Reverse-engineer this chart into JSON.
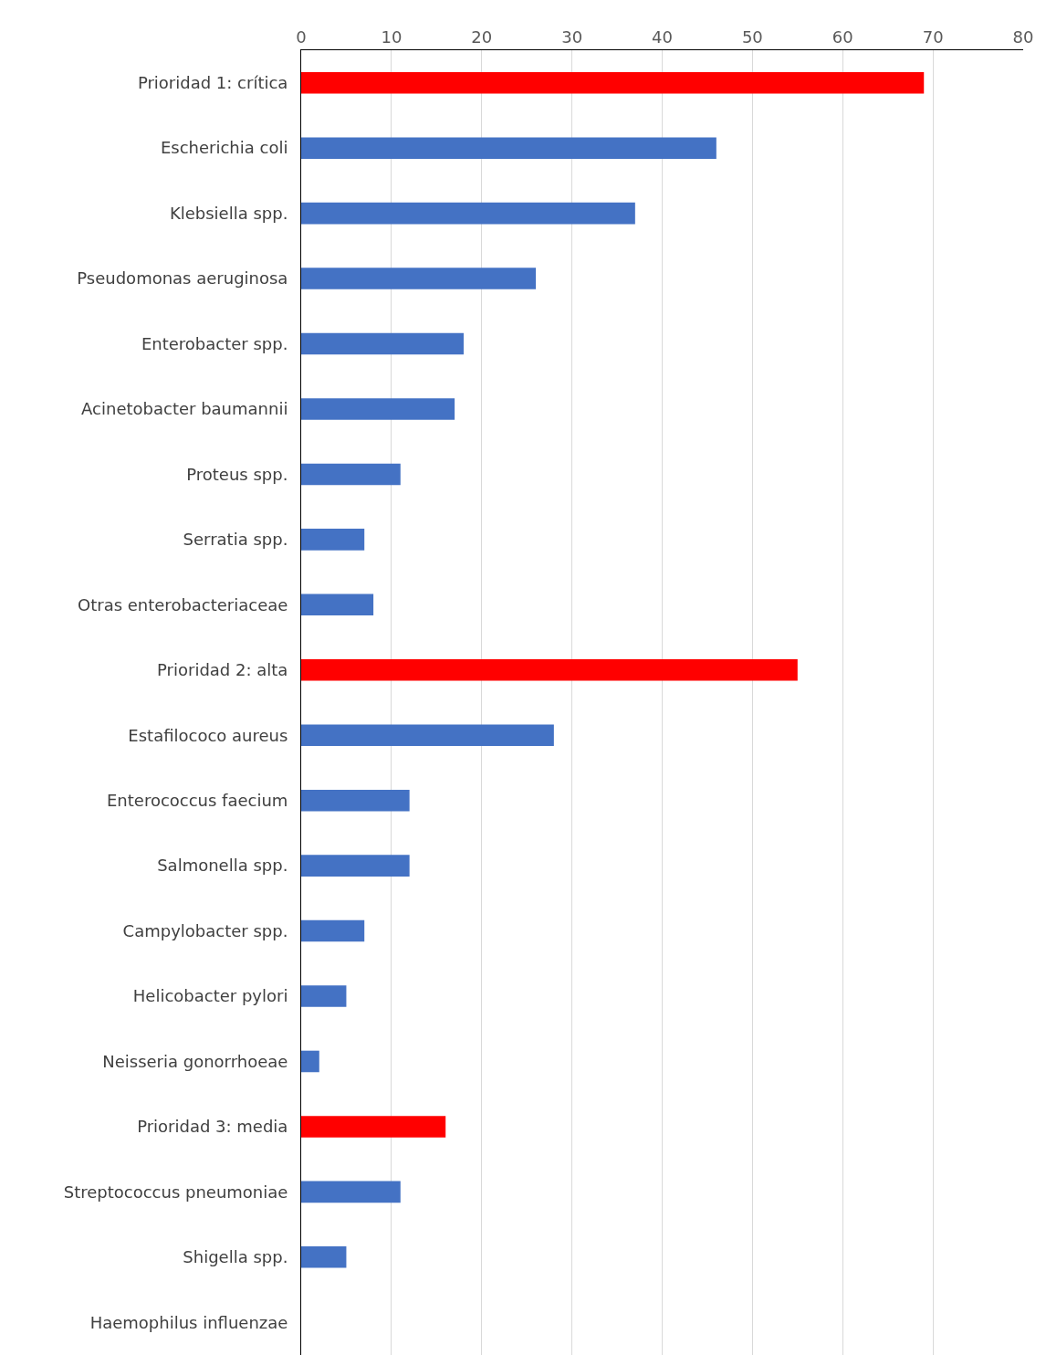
{
  "chart_data": {
    "type": "bar",
    "orientation": "horizontal",
    "categories": [
      "Prioridad 1: crítica",
      "Escherichia coli",
      "Klebsiella spp.",
      "Pseudomonas aeruginosa",
      "Enterobacter spp.",
      "Acinetobacter baumannii",
      "Proteus spp.",
      "Serratia spp.",
      "Otras enterobacteriaceae",
      "Prioridad 2: alta",
      "Estafilococo aureus",
      "Enterococcus faecium",
      "Salmonella spp.",
      "Campylobacter spp.",
      "Helicobacter pylori",
      "Neisseria gonorrhoeae",
      "Prioridad 3: media",
      "Streptococcus pneumoniae",
      "Shigella spp.",
      "Haemophilus influenzae"
    ],
    "values": [
      69,
      46,
      37,
      26,
      18,
      17,
      11,
      7,
      8,
      55,
      28,
      12,
      12,
      7,
      5,
      2,
      16,
      11,
      5,
      0
    ],
    "colors": [
      "#ff0000",
      "#4472c4",
      "#4472c4",
      "#4472c4",
      "#4472c4",
      "#4472c4",
      "#4472c4",
      "#4472c4",
      "#4472c4",
      "#ff0000",
      "#4472c4",
      "#4472c4",
      "#4472c4",
      "#4472c4",
      "#4472c4",
      "#4472c4",
      "#ff0000",
      "#4472c4",
      "#4472c4",
      "#4472c4"
    ],
    "xlim": [
      0,
      80
    ],
    "xticks": [
      0,
      10,
      20,
      30,
      40,
      50,
      60,
      70,
      80
    ],
    "grid": "x",
    "legend": false
  }
}
